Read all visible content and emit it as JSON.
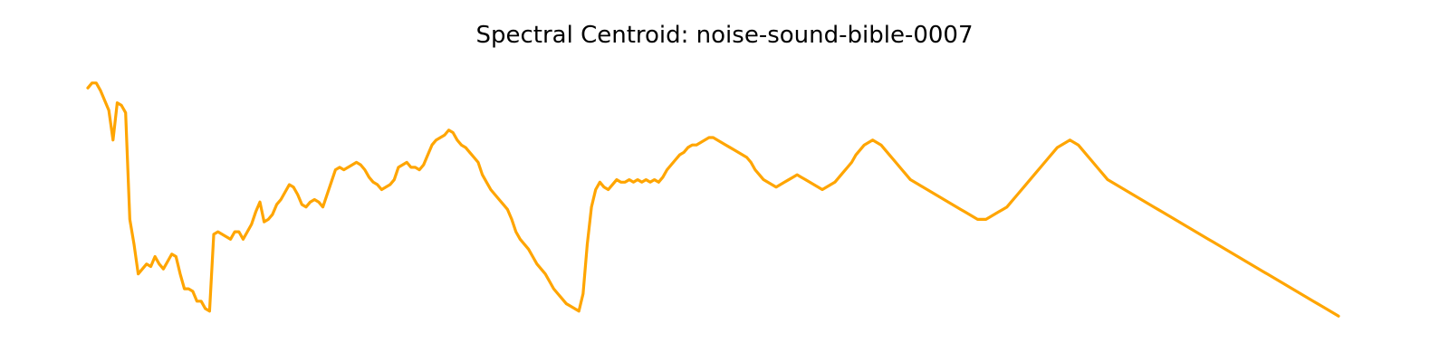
{
  "chart_data": {
    "type": "line",
    "title": "Spectral Centroid: noise-sound-bible-0007",
    "xlabel": "",
    "ylabel": "",
    "axis_visible": false,
    "grid": false,
    "line_color": "#ffa500",
    "ylim": [
      0,
      1
    ],
    "values": [
      0.93,
      0.95,
      0.95,
      0.92,
      0.88,
      0.84,
      0.72,
      0.87,
      0.86,
      0.83,
      0.4,
      0.3,
      0.18,
      0.2,
      0.22,
      0.21,
      0.25,
      0.22,
      0.2,
      0.23,
      0.26,
      0.25,
      0.18,
      0.12,
      0.12,
      0.11,
      0.07,
      0.07,
      0.04,
      0.03,
      0.34,
      0.35,
      0.34,
      0.33,
      0.32,
      0.35,
      0.35,
      0.32,
      0.35,
      0.38,
      0.43,
      0.47,
      0.39,
      0.4,
      0.42,
      0.46,
      0.48,
      0.51,
      0.54,
      0.53,
      0.5,
      0.46,
      0.45,
      0.47,
      0.48,
      0.47,
      0.45,
      0.5,
      0.55,
      0.6,
      0.61,
      0.6,
      0.61,
      0.62,
      0.63,
      0.62,
      0.6,
      0.57,
      0.55,
      0.54,
      0.52,
      0.53,
      0.54,
      0.56,
      0.61,
      0.62,
      0.63,
      0.61,
      0.61,
      0.6,
      0.62,
      0.66,
      0.7,
      0.72,
      0.73,
      0.74,
      0.76,
      0.75,
      0.72,
      0.7,
      0.69,
      0.67,
      0.65,
      0.63,
      0.58,
      0.55,
      0.52,
      0.5,
      0.48,
      0.46,
      0.44,
      0.4,
      0.35,
      0.32,
      0.3,
      0.28,
      0.25,
      0.22,
      0.2,
      0.18,
      0.15,
      0.12,
      0.1,
      0.08,
      0.06,
      0.05,
      0.04,
      0.03,
      0.1,
      0.3,
      0.45,
      0.52,
      0.55,
      0.53,
      0.52,
      0.54,
      0.56,
      0.55,
      0.55,
      0.56,
      0.55,
      0.56,
      0.55,
      0.56,
      0.55,
      0.56,
      0.55,
      0.57,
      0.6,
      0.62,
      0.64,
      0.66,
      0.67,
      0.69,
      0.7,
      0.7,
      0.71,
      0.72,
      0.73,
      0.73,
      0.72,
      0.71,
      0.7,
      0.69,
      0.68,
      0.67,
      0.66,
      0.65,
      0.63,
      0.6,
      0.58,
      0.56,
      0.55,
      0.54,
      0.53,
      0.54,
      0.55,
      0.56,
      0.57,
      0.58,
      0.57,
      0.56,
      0.55,
      0.54,
      0.53,
      0.52,
      0.53,
      0.54,
      0.55,
      0.57,
      0.59,
      0.61,
      0.63,
      0.66,
      0.68,
      0.7,
      0.71,
      0.72,
      0.71,
      0.7,
      0.68,
      0.66,
      0.64,
      0.62,
      0.6,
      0.58,
      0.56,
      0.55,
      0.54,
      0.53,
      0.52,
      0.51,
      0.5,
      0.49,
      0.48,
      0.47,
      0.46,
      0.45,
      0.44,
      0.43,
      0.42,
      0.41,
      0.4,
      0.4,
      0.4,
      0.41,
      0.42,
      0.43,
      0.44,
      0.45,
      0.47,
      0.49,
      0.51,
      0.53,
      0.55,
      0.57,
      0.59,
      0.61,
      0.63,
      0.65,
      0.67,
      0.69,
      0.7,
      0.71,
      0.72,
      0.71,
      0.7,
      0.68,
      0.66,
      0.64,
      0.62,
      0.6,
      0.58,
      0.56,
      0.55,
      0.54,
      0.53,
      0.52,
      0.51,
      0.5,
      0.49,
      0.48,
      0.47,
      0.46,
      0.45,
      0.44,
      0.43,
      0.42,
      0.41,
      0.4,
      0.39,
      0.38,
      0.37,
      0.36,
      0.35,
      0.34,
      0.33,
      0.32,
      0.31,
      0.3,
      0.29,
      0.28,
      0.27,
      0.26,
      0.25,
      0.24,
      0.23,
      0.22,
      0.21,
      0.2,
      0.19,
      0.18,
      0.17,
      0.16,
      0.15,
      0.14,
      0.13,
      0.12,
      0.11,
      0.1,
      0.09,
      0.08,
      0.07,
      0.06,
      0.05,
      0.04,
      0.03,
      0.02,
      0.01
    ],
    "series": [
      {
        "values": []
      }
    ]
  }
}
